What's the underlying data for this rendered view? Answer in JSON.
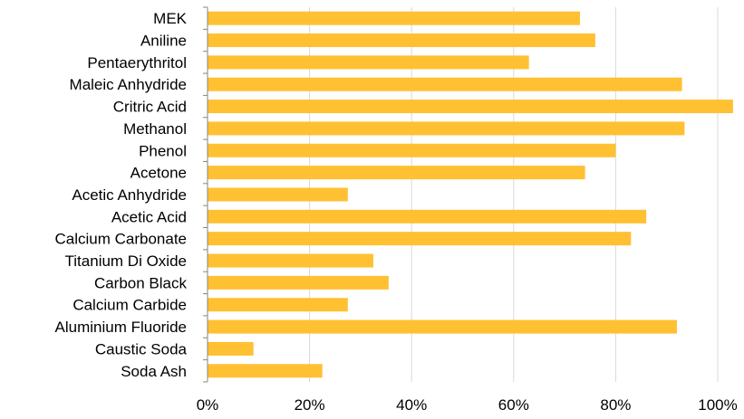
{
  "chart_data": {
    "type": "bar",
    "orientation": "horizontal",
    "title": "",
    "xlabel": "",
    "ylabel": "",
    "categories": [
      "MEK",
      "Aniline",
      "Pentaerythritol",
      "Maleic Anhydride",
      "Critric Acid",
      "Methanol",
      "Phenol",
      "Acetone",
      "Acetic Anhydride",
      "Acetic Acid",
      "Calcium Carbonate",
      "Titanium Di Oxide",
      "Carbon Black",
      "Calcium Carbide",
      "Aluminium Fluoride",
      "Caustic Soda",
      "Soda Ash"
    ],
    "values": [
      0.73,
      0.76,
      0.63,
      0.93,
      1.03,
      0.935,
      0.8,
      0.74,
      0.275,
      0.86,
      0.83,
      0.325,
      0.355,
      0.275,
      0.92,
      0.09,
      0.225
    ],
    "xlim": [
      0,
      1.05
    ],
    "xticks": [
      0,
      0.2,
      0.4,
      0.6,
      0.8,
      1.0
    ],
    "xtick_labels": [
      "0%",
      "20%",
      "40%",
      "60%",
      "80%",
      "100%"
    ],
    "grid": "vertical",
    "legend": "none",
    "bar_color": "#FFC032"
  }
}
